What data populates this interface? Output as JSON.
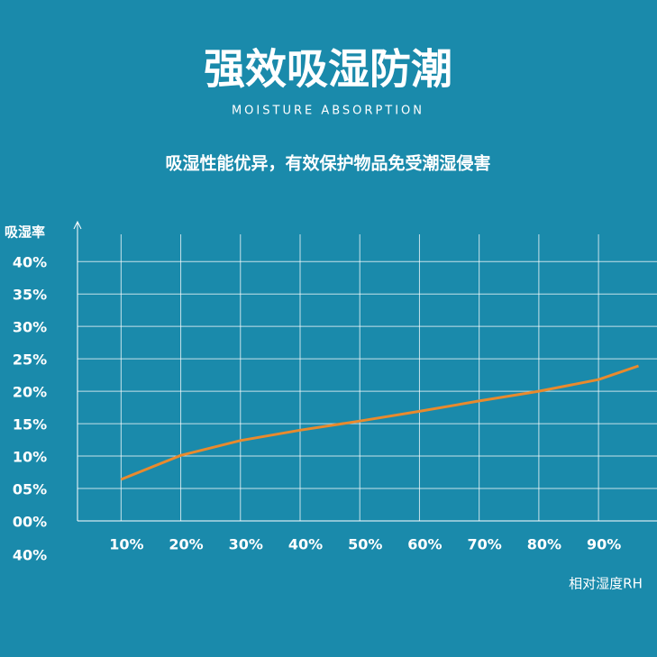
{
  "chart_data": {
    "type": "line",
    "title": "强效吸湿防潮",
    "subtitle": "MOISTURE ABSORPTION",
    "tagline": "吸湿性能优异，有效保护物品免受潮湿侵害",
    "y_label": "吸湿率",
    "x_label": "相对湿度RH",
    "annotations": [
      "40%"
    ],
    "x": [
      10,
      20,
      30,
      40,
      50,
      60,
      70,
      80,
      90,
      96.7
    ],
    "xticks": [
      {
        "value": 10,
        "label": "10%"
      },
      {
        "value": 20,
        "label": "20%"
      },
      {
        "value": 30,
        "label": "30%"
      },
      {
        "value": 40,
        "label": "40%"
      },
      {
        "value": 50,
        "label": "50%"
      },
      {
        "value": 60,
        "label": "60%"
      },
      {
        "value": 70,
        "label": "70%"
      },
      {
        "value": 80,
        "label": "80%"
      },
      {
        "value": 90,
        "label": "90%"
      }
    ],
    "xlim": [
      2.7,
      99.8
    ],
    "ylim": [
      0,
      44.2
    ],
    "yticks": [
      {
        "value": 40,
        "label": "40%"
      },
      {
        "value": 35,
        "label": "35%"
      },
      {
        "value": 30,
        "label": "30%"
      },
      {
        "value": 25,
        "label": "25%"
      },
      {
        "value": 20,
        "label": "20%"
      },
      {
        "value": 15,
        "label": "15%"
      },
      {
        "value": 10,
        "label": "10%"
      },
      {
        "value": 5,
        "label": "05%"
      },
      {
        "value": 0,
        "label": "00%"
      }
    ],
    "grid": true,
    "series": [
      {
        "color": "#e98a2d",
        "values": [
          6.4,
          10.1,
          12.4,
          14.0,
          15.4,
          16.9,
          18.5,
          20.0,
          21.8,
          23.9
        ]
      }
    ]
  }
}
